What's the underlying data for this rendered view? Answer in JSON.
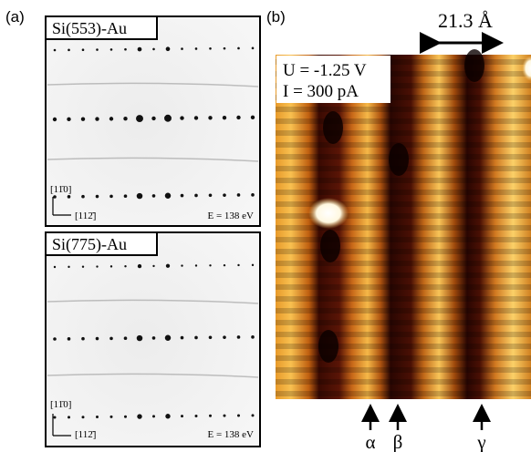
{
  "panel_a": {
    "label": "(a)",
    "top": {
      "title": "Si(553)-Au",
      "direction_1": "[11̄0]",
      "direction_2": "[112̄]",
      "energy": "E = 138 eV"
    },
    "bottom": {
      "title": "Si(775)-Au",
      "direction_1": "[11̄0]",
      "direction_2": "[112̄]",
      "energy": "E = 138 eV"
    }
  },
  "panel_b": {
    "label": "(b)",
    "scale": "21.3 Å",
    "voltage": "U = -1.25 V",
    "current": "I = 300 pA",
    "markers": [
      "α",
      "β",
      "γ"
    ]
  }
}
